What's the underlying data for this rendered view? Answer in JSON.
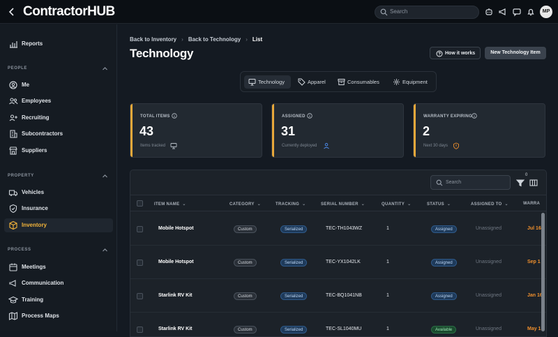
{
  "app": {
    "logo": "ContractorHUB",
    "search_placeholder": "Search",
    "avatar_initials": "MP"
  },
  "sidebar": {
    "reports": "Reports",
    "sections": {
      "people": "PEOPLE",
      "property": "PROPERTY",
      "process": "PROCESS"
    },
    "people": [
      "Me",
      "Employees",
      "Recruiting",
      "Subcontractors",
      "Suppliers"
    ],
    "property": [
      "Vehicles",
      "Insurance",
      "Inventory"
    ],
    "process": [
      "Meetings",
      "Communication",
      "Training",
      "Process Maps"
    ]
  },
  "breadcrumb": [
    "Back to Inventory",
    "Back to Technology",
    "List"
  ],
  "page": {
    "title": "Technology",
    "how_it_works": "How it works",
    "new_item": "New Technology Item"
  },
  "tabs": [
    "Technology",
    "Apparel",
    "Consumables",
    "Equipment"
  ],
  "cards": [
    {
      "title": "TOTAL ITEMS",
      "value": "43",
      "sub": "Items tracked"
    },
    {
      "title": "ASSIGNED",
      "value": "31",
      "sub": "Currently deployed"
    },
    {
      "title": "WARRANTY EXPIRING",
      "value": "2",
      "sub": "Next 30 days"
    }
  ],
  "table": {
    "search_placeholder": "Search",
    "filter_count": "0",
    "columns": [
      "ITEM NAME",
      "CATEGORY",
      "TRACKING",
      "SERIAL NUMBER",
      "QUANTITY",
      "STATUS",
      "ASSIGNED TO",
      "WARRA"
    ],
    "rows": [
      {
        "name": "Mobile Hotspot",
        "category": "Custom",
        "tracking": "Serialized",
        "serial": "TEC-TH1043WZ",
        "quantity": "1",
        "status": "Assigned",
        "assigned_to": "Unassigned",
        "warranty": "Jul 16"
      },
      {
        "name": "Mobile Hotspot",
        "category": "Custom",
        "tracking": "Serialized",
        "serial": "TEC-YX1042LK",
        "quantity": "1",
        "status": "Assigned",
        "assigned_to": "Unassigned",
        "warranty": "Sep 1"
      },
      {
        "name": "Starlink RV Kit",
        "category": "Custom",
        "tracking": "Serialized",
        "serial": "TEC-BQ1041NB",
        "quantity": "1",
        "status": "Assigned",
        "assigned_to": "Unassigned",
        "warranty": "Jan 16"
      },
      {
        "name": "Starlink RV Kit",
        "category": "Custom",
        "tracking": "Serialized",
        "serial": "TEC-SL1040MU",
        "quantity": "1",
        "status": "Available",
        "assigned_to": "Unassigned",
        "warranty": "May 1"
      }
    ]
  },
  "colors": {
    "accent": "#f5b53a",
    "card_bar": "#e8a83a",
    "warranty": "#f0902d"
  }
}
